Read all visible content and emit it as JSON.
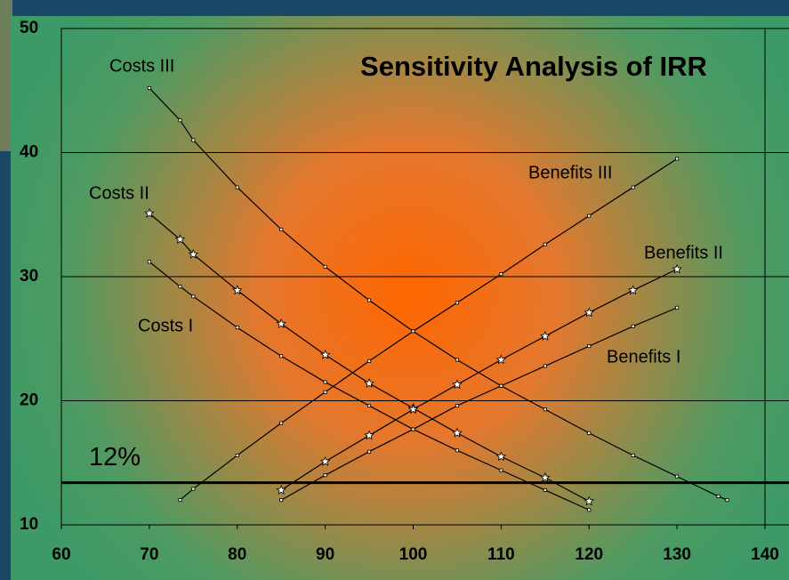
{
  "chart_data": {
    "type": "line",
    "title": "Sensitivity Analysis of IRR",
    "xlim": [
      60,
      140
    ],
    "xticks": [
      60,
      70,
      80,
      90,
      100,
      110,
      120,
      130,
      140
    ],
    "ylim": [
      10,
      50
    ],
    "yticks": [
      10,
      20,
      30,
      40,
      50
    ],
    "grid": true,
    "reference_line": {
      "y": 13.4,
      "label": "12%"
    },
    "series": [
      {
        "name": "Costs III",
        "color": "#000000",
        "marker": "square",
        "x": [
          70,
          73.5,
          75,
          80,
          85,
          90,
          95,
          100,
          105,
          110,
          115,
          120,
          125,
          130,
          134.7,
          135.7
        ],
        "values": [
          45.2,
          42.6,
          41,
          37.2,
          33.8,
          30.8,
          28.1,
          25.6,
          23.3,
          21.2,
          19.3,
          17.4,
          15.6,
          13.9,
          12.3,
          12.0
        ]
      },
      {
        "name": "Costs II",
        "color": "#000000",
        "marker": "star",
        "x": [
          70,
          73.5,
          75,
          80,
          85,
          90,
          95,
          100,
          105,
          110,
          115,
          120
        ],
        "values": [
          35.1,
          33,
          31.8,
          28.9,
          26.2,
          23.7,
          21.4,
          19.4,
          17.4,
          15.5,
          13.8,
          11.9
        ]
      },
      {
        "name": "Costs I",
        "color": "#000000",
        "marker": "square",
        "x": [
          70,
          73.5,
          75,
          80,
          85,
          90,
          95,
          100,
          105,
          110,
          115,
          120
        ],
        "values": [
          31.2,
          29.2,
          28.4,
          25.9,
          23.6,
          21.5,
          19.6,
          17.7,
          16,
          14.4,
          12.8,
          11.2
        ]
      },
      {
        "name": "Benefits III",
        "color": "#000000",
        "marker": "square",
        "x": [
          73.5,
          75,
          80,
          85,
          90,
          95,
          100,
          105,
          110,
          115,
          120,
          125,
          130
        ],
        "values": [
          12,
          12.9,
          15.6,
          18.2,
          20.7,
          23.2,
          25.6,
          27.9,
          30.2,
          32.6,
          34.9,
          37.2,
          39.5
        ]
      },
      {
        "name": "Benefits II",
        "color": "#000000",
        "marker": "star",
        "x": [
          85,
          90,
          95,
          100,
          105,
          110,
          115,
          120,
          125,
          130
        ],
        "values": [
          12.8,
          15.1,
          17.2,
          19.3,
          21.3,
          23.3,
          25.2,
          27.1,
          28.9,
          30.6
        ]
      },
      {
        "name": "Benefits I",
        "color": "#000000",
        "marker": "square",
        "x": [
          85,
          90,
          95,
          100,
          105,
          110,
          115,
          120,
          125,
          130
        ],
        "values": [
          12,
          14,
          15.9,
          17.7,
          19.6,
          21.2,
          22.8,
          24.4,
          26,
          27.5
        ]
      }
    ]
  }
}
